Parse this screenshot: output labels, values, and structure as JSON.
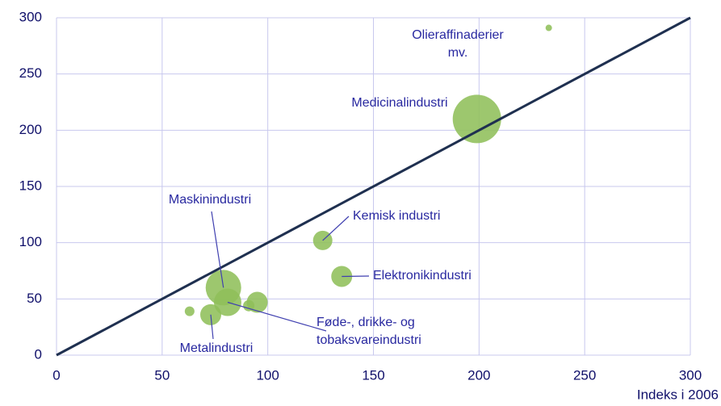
{
  "chart_data": {
    "type": "bubble",
    "x_label": "Indeks i 2006",
    "series": [
      {
        "color": "#8fbf5a",
        "x": [
          233,
          199,
          126,
          135,
          79,
          81,
          95,
          91,
          73,
          63
        ],
        "values": [
          291,
          210,
          102,
          70,
          60,
          47,
          47,
          44,
          36,
          39
        ],
        "sizes": [
          4,
          30,
          12,
          13,
          22,
          17,
          13,
          7,
          13,
          6
        ]
      }
    ],
    "diagonal": {
      "x": [
        0,
        300
      ],
      "y": [
        0,
        300
      ],
      "color": "#1f3050"
    },
    "annotations": [
      {
        "text": [
          "Olieraffinaderier",
          "mv."
        ],
        "point": 0
      },
      {
        "text": [
          "Medicinalindustri"
        ],
        "point": 1
      },
      {
        "text": [
          "Kemisk industri"
        ],
        "point": 2
      },
      {
        "text": [
          "Elektronikindustri"
        ],
        "point": 3
      },
      {
        "text": [
          "Maskinindustri"
        ],
        "point": 4
      },
      {
        "text": [
          "Føde-, drikke- og",
          "tobaksvareindustri"
        ],
        "point": 5
      },
      {
        "text": [
          "Metalindustri"
        ],
        "point": 8
      }
    ],
    "xlim": [
      0,
      300
    ],
    "ylim": [
      0,
      300
    ],
    "xticks": [
      0,
      50,
      100,
      150,
      200,
      250,
      300
    ],
    "yticks": [
      0,
      50,
      100,
      150,
      200,
      250,
      300
    ],
    "grid": true,
    "grid_color": "#c8c8ee"
  }
}
